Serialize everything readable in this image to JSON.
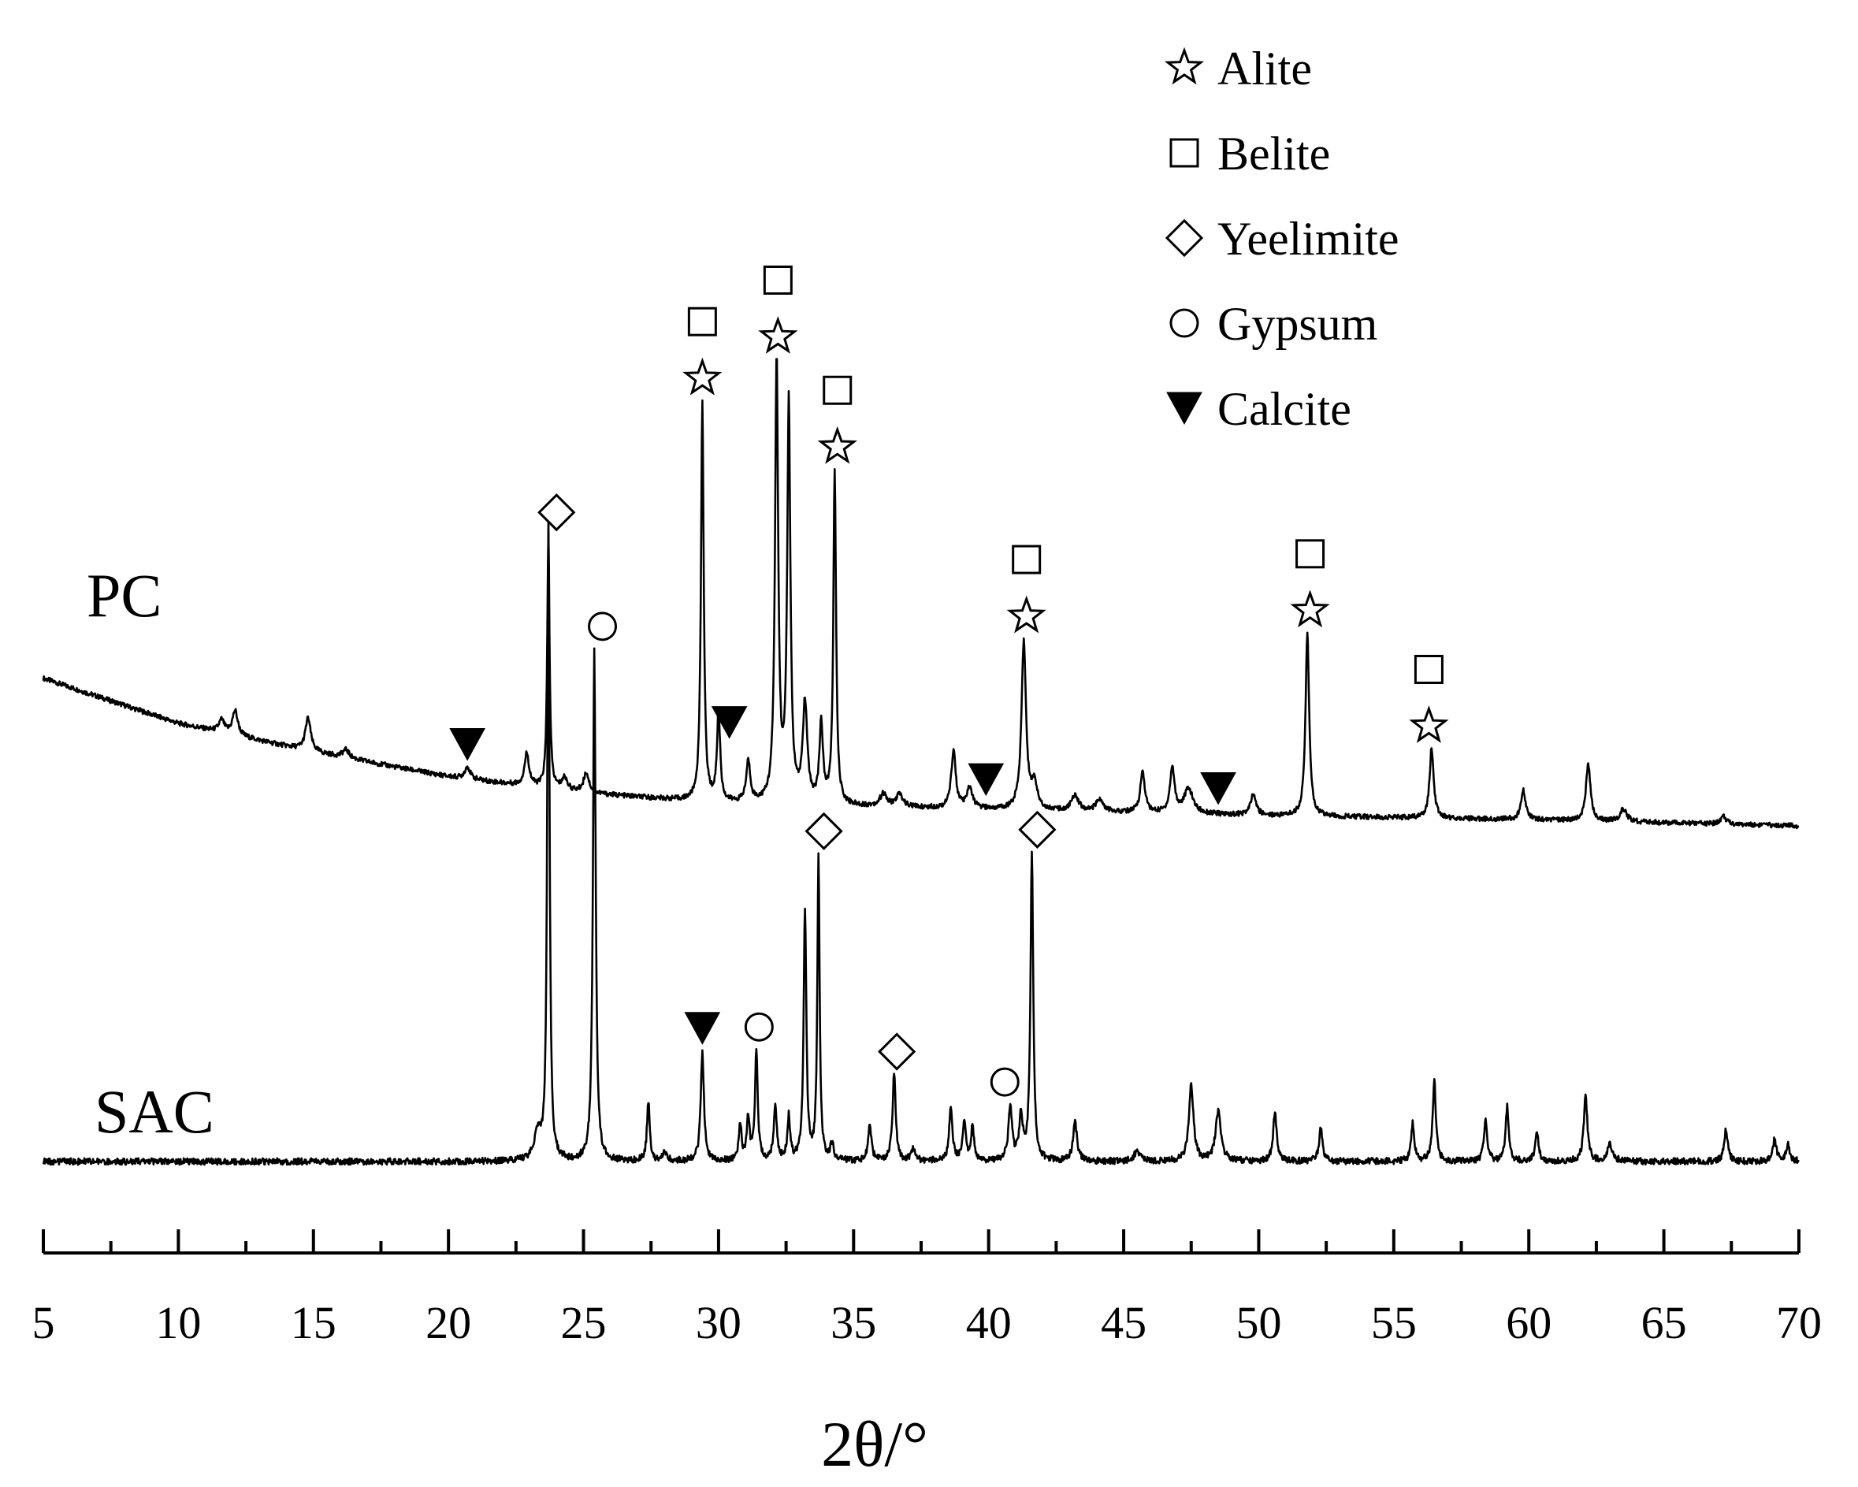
{
  "chart_data": {
    "type": "line",
    "xlabel": "2θ/°",
    "ylabel": "",
    "xlim": [
      5,
      70
    ],
    "grid": false,
    "legend_position": "top-right",
    "x_ticks": [
      "5",
      "10",
      "15",
      "20",
      "25",
      "30",
      "35",
      "40",
      "45",
      "50",
      "55",
      "60",
      "65",
      "70"
    ],
    "legend": [
      {
        "phase": "alite",
        "label": "Alite",
        "symbol": "star-open"
      },
      {
        "phase": "belite",
        "label": "Belite",
        "symbol": "square-open"
      },
      {
        "phase": "yeelimite",
        "label": "Yeelimite",
        "symbol": "diamond-open"
      },
      {
        "phase": "gypsum",
        "label": "Gypsum",
        "symbol": "circle-open"
      },
      {
        "phase": "calcite",
        "label": "Calcite",
        "symbol": "triangle-down-filled"
      }
    ],
    "series": [
      {
        "name": "PC",
        "baseline_points": [
          [
            5,
            0.36
          ],
          [
            10,
            0.25
          ],
          [
            15,
            0.18
          ],
          [
            20,
            0.12
          ],
          [
            25,
            0.08
          ],
          [
            30,
            0.055
          ],
          [
            40,
            0.04
          ],
          [
            50,
            0.025
          ],
          [
            60,
            0.015
          ],
          [
            70,
            0.0
          ]
        ],
        "peaks": [
          [
            11.6,
            0.03,
            0.12
          ],
          [
            12.1,
            0.06,
            0.12
          ],
          [
            14.8,
            0.08,
            0.12
          ],
          [
            16.2,
            0.02,
            0.15
          ],
          [
            20.7,
            0.03,
            0.12
          ],
          [
            22.9,
            0.08,
            0.1
          ],
          [
            23.7,
            0.62,
            0.05
          ],
          [
            24.3,
            0.03,
            0.12
          ],
          [
            25.1,
            0.05,
            0.12
          ],
          [
            29.4,
            0.98,
            0.06
          ],
          [
            30.0,
            0.22,
            0.07
          ],
          [
            31.1,
            0.1,
            0.09
          ],
          [
            32.15,
            1.08,
            0.07
          ],
          [
            32.6,
            0.97,
            0.07
          ],
          [
            33.2,
            0.24,
            0.1
          ],
          [
            33.8,
            0.19,
            0.08
          ],
          [
            34.3,
            0.81,
            0.06
          ],
          [
            36.1,
            0.03,
            0.15
          ],
          [
            36.7,
            0.03,
            0.15
          ],
          [
            38.7,
            0.14,
            0.1
          ],
          [
            39.3,
            0.05,
            0.12
          ],
          [
            41.3,
            0.41,
            0.1
          ],
          [
            41.7,
            0.06,
            0.12
          ],
          [
            43.2,
            0.04,
            0.15
          ],
          [
            44.1,
            0.03,
            0.15
          ],
          [
            45.7,
            0.1,
            0.1
          ],
          [
            46.8,
            0.11,
            0.1
          ],
          [
            47.4,
            0.06,
            0.2
          ],
          [
            49.8,
            0.05,
            0.12
          ],
          [
            51.8,
            0.45,
            0.08
          ],
          [
            56.4,
            0.17,
            0.09
          ],
          [
            59.8,
            0.07,
            0.1
          ],
          [
            62.2,
            0.14,
            0.1
          ],
          [
            63.5,
            0.03,
            0.15
          ],
          [
            67.2,
            0.02,
            0.12
          ]
        ]
      },
      {
        "name": "SAC",
        "baseline_points": [
          [
            5,
            0.0
          ],
          [
            70,
            0.0
          ]
        ],
        "peaks": [
          [
            23.3,
            0.05,
            0.15
          ],
          [
            23.7,
            1.18,
            0.05
          ],
          [
            25.4,
            0.94,
            0.06
          ],
          [
            27.4,
            0.11,
            0.06
          ],
          [
            28.0,
            0.02,
            0.08
          ],
          [
            29.4,
            0.2,
            0.07
          ],
          [
            30.8,
            0.07,
            0.06
          ],
          [
            31.1,
            0.08,
            0.06
          ],
          [
            31.4,
            0.2,
            0.06
          ],
          [
            32.1,
            0.1,
            0.07
          ],
          [
            32.6,
            0.08,
            0.06
          ],
          [
            33.2,
            0.46,
            0.06
          ],
          [
            33.7,
            0.56,
            0.05
          ],
          [
            34.2,
            0.03,
            0.07
          ],
          [
            35.6,
            0.07,
            0.07
          ],
          [
            36.5,
            0.16,
            0.07
          ],
          [
            37.2,
            0.02,
            0.1
          ],
          [
            38.6,
            0.1,
            0.07
          ],
          [
            39.1,
            0.07,
            0.07
          ],
          [
            39.4,
            0.06,
            0.07
          ],
          [
            40.8,
            0.1,
            0.08
          ],
          [
            41.2,
            0.08,
            0.08
          ],
          [
            41.6,
            0.57,
            0.06
          ],
          [
            43.2,
            0.07,
            0.09
          ],
          [
            45.5,
            0.02,
            0.12
          ],
          [
            47.5,
            0.14,
            0.1
          ],
          [
            48.5,
            0.09,
            0.12
          ],
          [
            50.6,
            0.09,
            0.08
          ],
          [
            52.3,
            0.06,
            0.08
          ],
          [
            55.7,
            0.07,
            0.07
          ],
          [
            56.5,
            0.15,
            0.07
          ],
          [
            58.4,
            0.08,
            0.07
          ],
          [
            59.2,
            0.1,
            0.07
          ],
          [
            60.3,
            0.05,
            0.08
          ],
          [
            62.1,
            0.12,
            0.08
          ],
          [
            63.0,
            0.03,
            0.12
          ],
          [
            67.3,
            0.06,
            0.08
          ],
          [
            69.1,
            0.04,
            0.08
          ],
          [
            69.6,
            0.03,
            0.08
          ]
        ]
      }
    ],
    "peak_markers": [
      {
        "series": "PC",
        "x": 24.0,
        "symbols": [
          "yeelimite"
        ]
      },
      {
        "series": "PC",
        "x": 29.4,
        "symbols": [
          "alite",
          "belite"
        ]
      },
      {
        "series": "PC",
        "x": 30.4,
        "symbols": [
          "calcite"
        ]
      },
      {
        "series": "PC",
        "x": 32.2,
        "symbols": [
          "alite",
          "belite"
        ]
      },
      {
        "series": "PC",
        "x": 34.4,
        "symbols": [
          "alite",
          "belite"
        ]
      },
      {
        "series": "PC",
        "x": 20.7,
        "symbols": [
          "calcite"
        ]
      },
      {
        "series": "PC",
        "x": 39.9,
        "symbols": [
          "calcite"
        ]
      },
      {
        "series": "PC",
        "x": 41.4,
        "symbols": [
          "alite",
          "belite"
        ]
      },
      {
        "series": "PC",
        "x": 48.5,
        "symbols": [
          "calcite"
        ]
      },
      {
        "series": "PC",
        "x": 51.9,
        "symbols": [
          "alite",
          "belite"
        ]
      },
      {
        "series": "PC",
        "x": 56.3,
        "symbols": [
          "alite",
          "belite"
        ]
      },
      {
        "series": "SAC",
        "x": 25.7,
        "symbols": [
          "gypsum"
        ]
      },
      {
        "series": "SAC",
        "x": 29.4,
        "symbols": [
          "calcite"
        ]
      },
      {
        "series": "SAC",
        "x": 31.5,
        "symbols": [
          "gypsum"
        ]
      },
      {
        "series": "SAC",
        "x": 33.9,
        "symbols": [
          "yeelimite"
        ]
      },
      {
        "series": "SAC",
        "x": 36.6,
        "symbols": [
          "yeelimite"
        ]
      },
      {
        "series": "SAC",
        "x": 40.6,
        "symbols": [
          "gypsum"
        ]
      },
      {
        "series": "SAC",
        "x": 41.8,
        "symbols": [
          "yeelimite"
        ]
      }
    ]
  }
}
